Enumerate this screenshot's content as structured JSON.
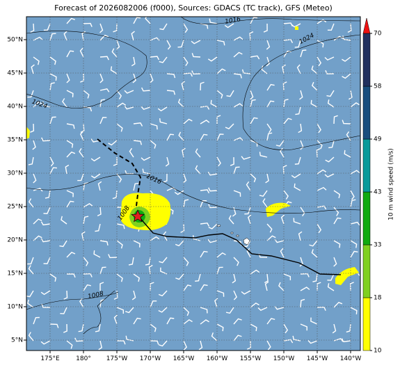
{
  "map": {
    "title": "Forecast of 2026082006 (f000), Sources: GDACS (TC track), GFS (Meteo)",
    "lat_labels": [
      "50°N",
      "45°N",
      "40°N",
      "35°N",
      "30°N",
      "25°N",
      "20°N",
      "15°N",
      "10°N",
      "5°N"
    ],
    "lon_labels": [
      "175°E",
      "180°",
      "175°W",
      "170°W",
      "165°W",
      "160°W",
      "155°W",
      "150°W",
      "145°W",
      "140°W"
    ],
    "isobar_labels": [
      1016,
      1024,
      1024,
      1016,
      1008,
      1008
    ]
  },
  "colorbar": {
    "label": "10 m wind speed (m/s)",
    "ticks": [
      10,
      18,
      33,
      43,
      49,
      58,
      70
    ],
    "colors": [
      "#ffff00",
      "#80d020",
      "#10aa10",
      "#0a9a9a",
      "#1a4e7e",
      "#22305e"
    ],
    "extend_color": "#ee1111"
  }
}
